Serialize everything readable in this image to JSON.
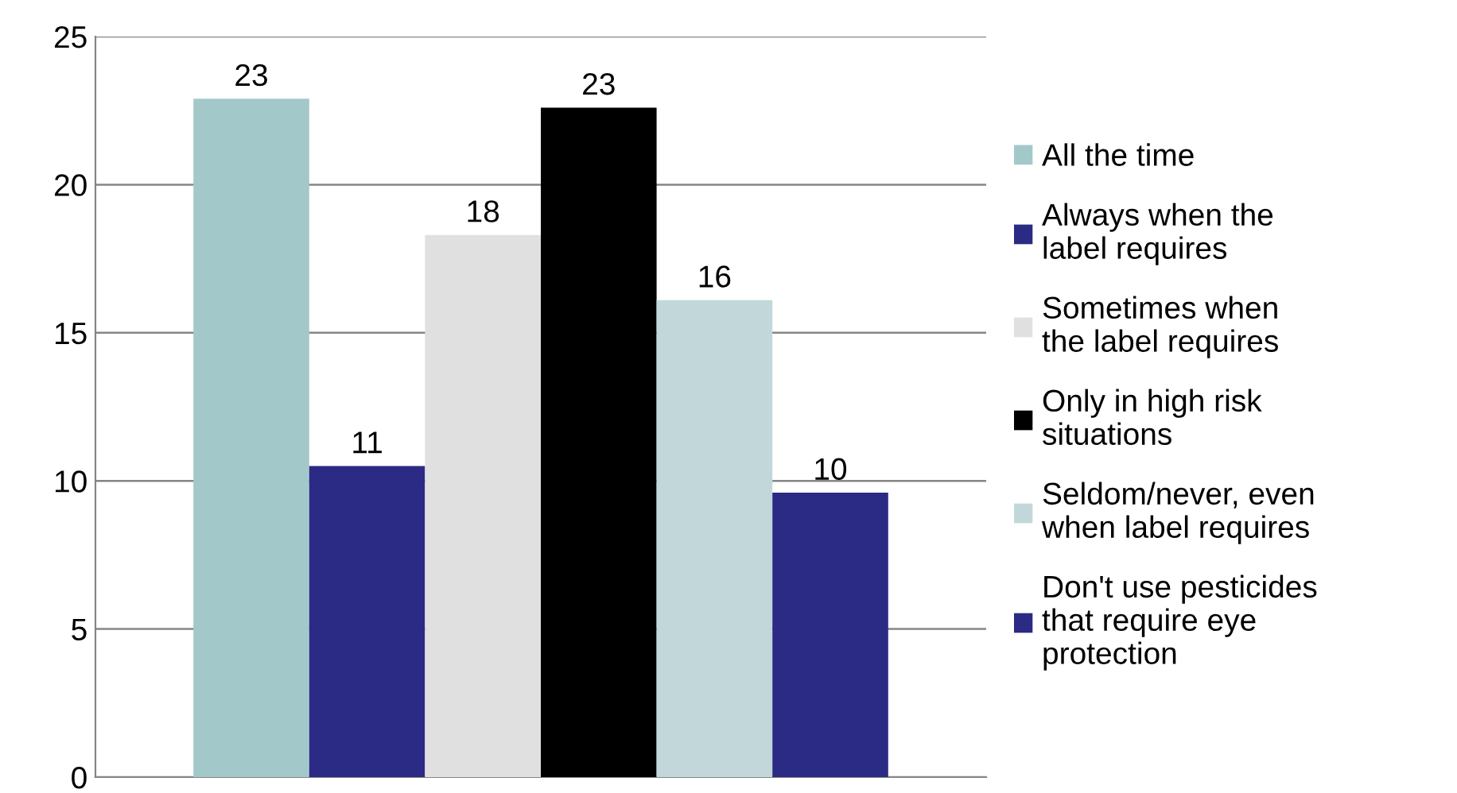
{
  "chart_data": {
    "type": "bar",
    "categories": [
      null
    ],
    "ylim": [
      0,
      25
    ],
    "yticks": [
      0,
      5,
      10,
      15,
      20,
      25
    ],
    "grid": "y",
    "legend": "right",
    "series": [
      {
        "name": "All the time",
        "color": "#a3c8c9",
        "values": [
          22.9
        ],
        "value_labels": [
          "23"
        ]
      },
      {
        "name": "Always when the label requires",
        "color": "#2b2a84",
        "values": [
          10.5
        ],
        "value_labels": [
          "11"
        ]
      },
      {
        "name": "Sometimes when the label requires",
        "color": "#e0e0e0",
        "values": [
          18.3
        ],
        "value_labels": [
          "18"
        ]
      },
      {
        "name": "Only in high risk situations",
        "color": "#000000",
        "values": [
          22.6
        ],
        "value_labels": [
          "23"
        ]
      },
      {
        "name": "Seldom/never, even when label requires",
        "color": "#c2d7d9",
        "values": [
          16.1
        ],
        "value_labels": [
          "16"
        ]
      },
      {
        "name": "Don't use pesticides that require eye protection",
        "color": "#2b2a84",
        "values": [
          9.6
        ],
        "value_labels": [
          "10"
        ]
      }
    ]
  }
}
